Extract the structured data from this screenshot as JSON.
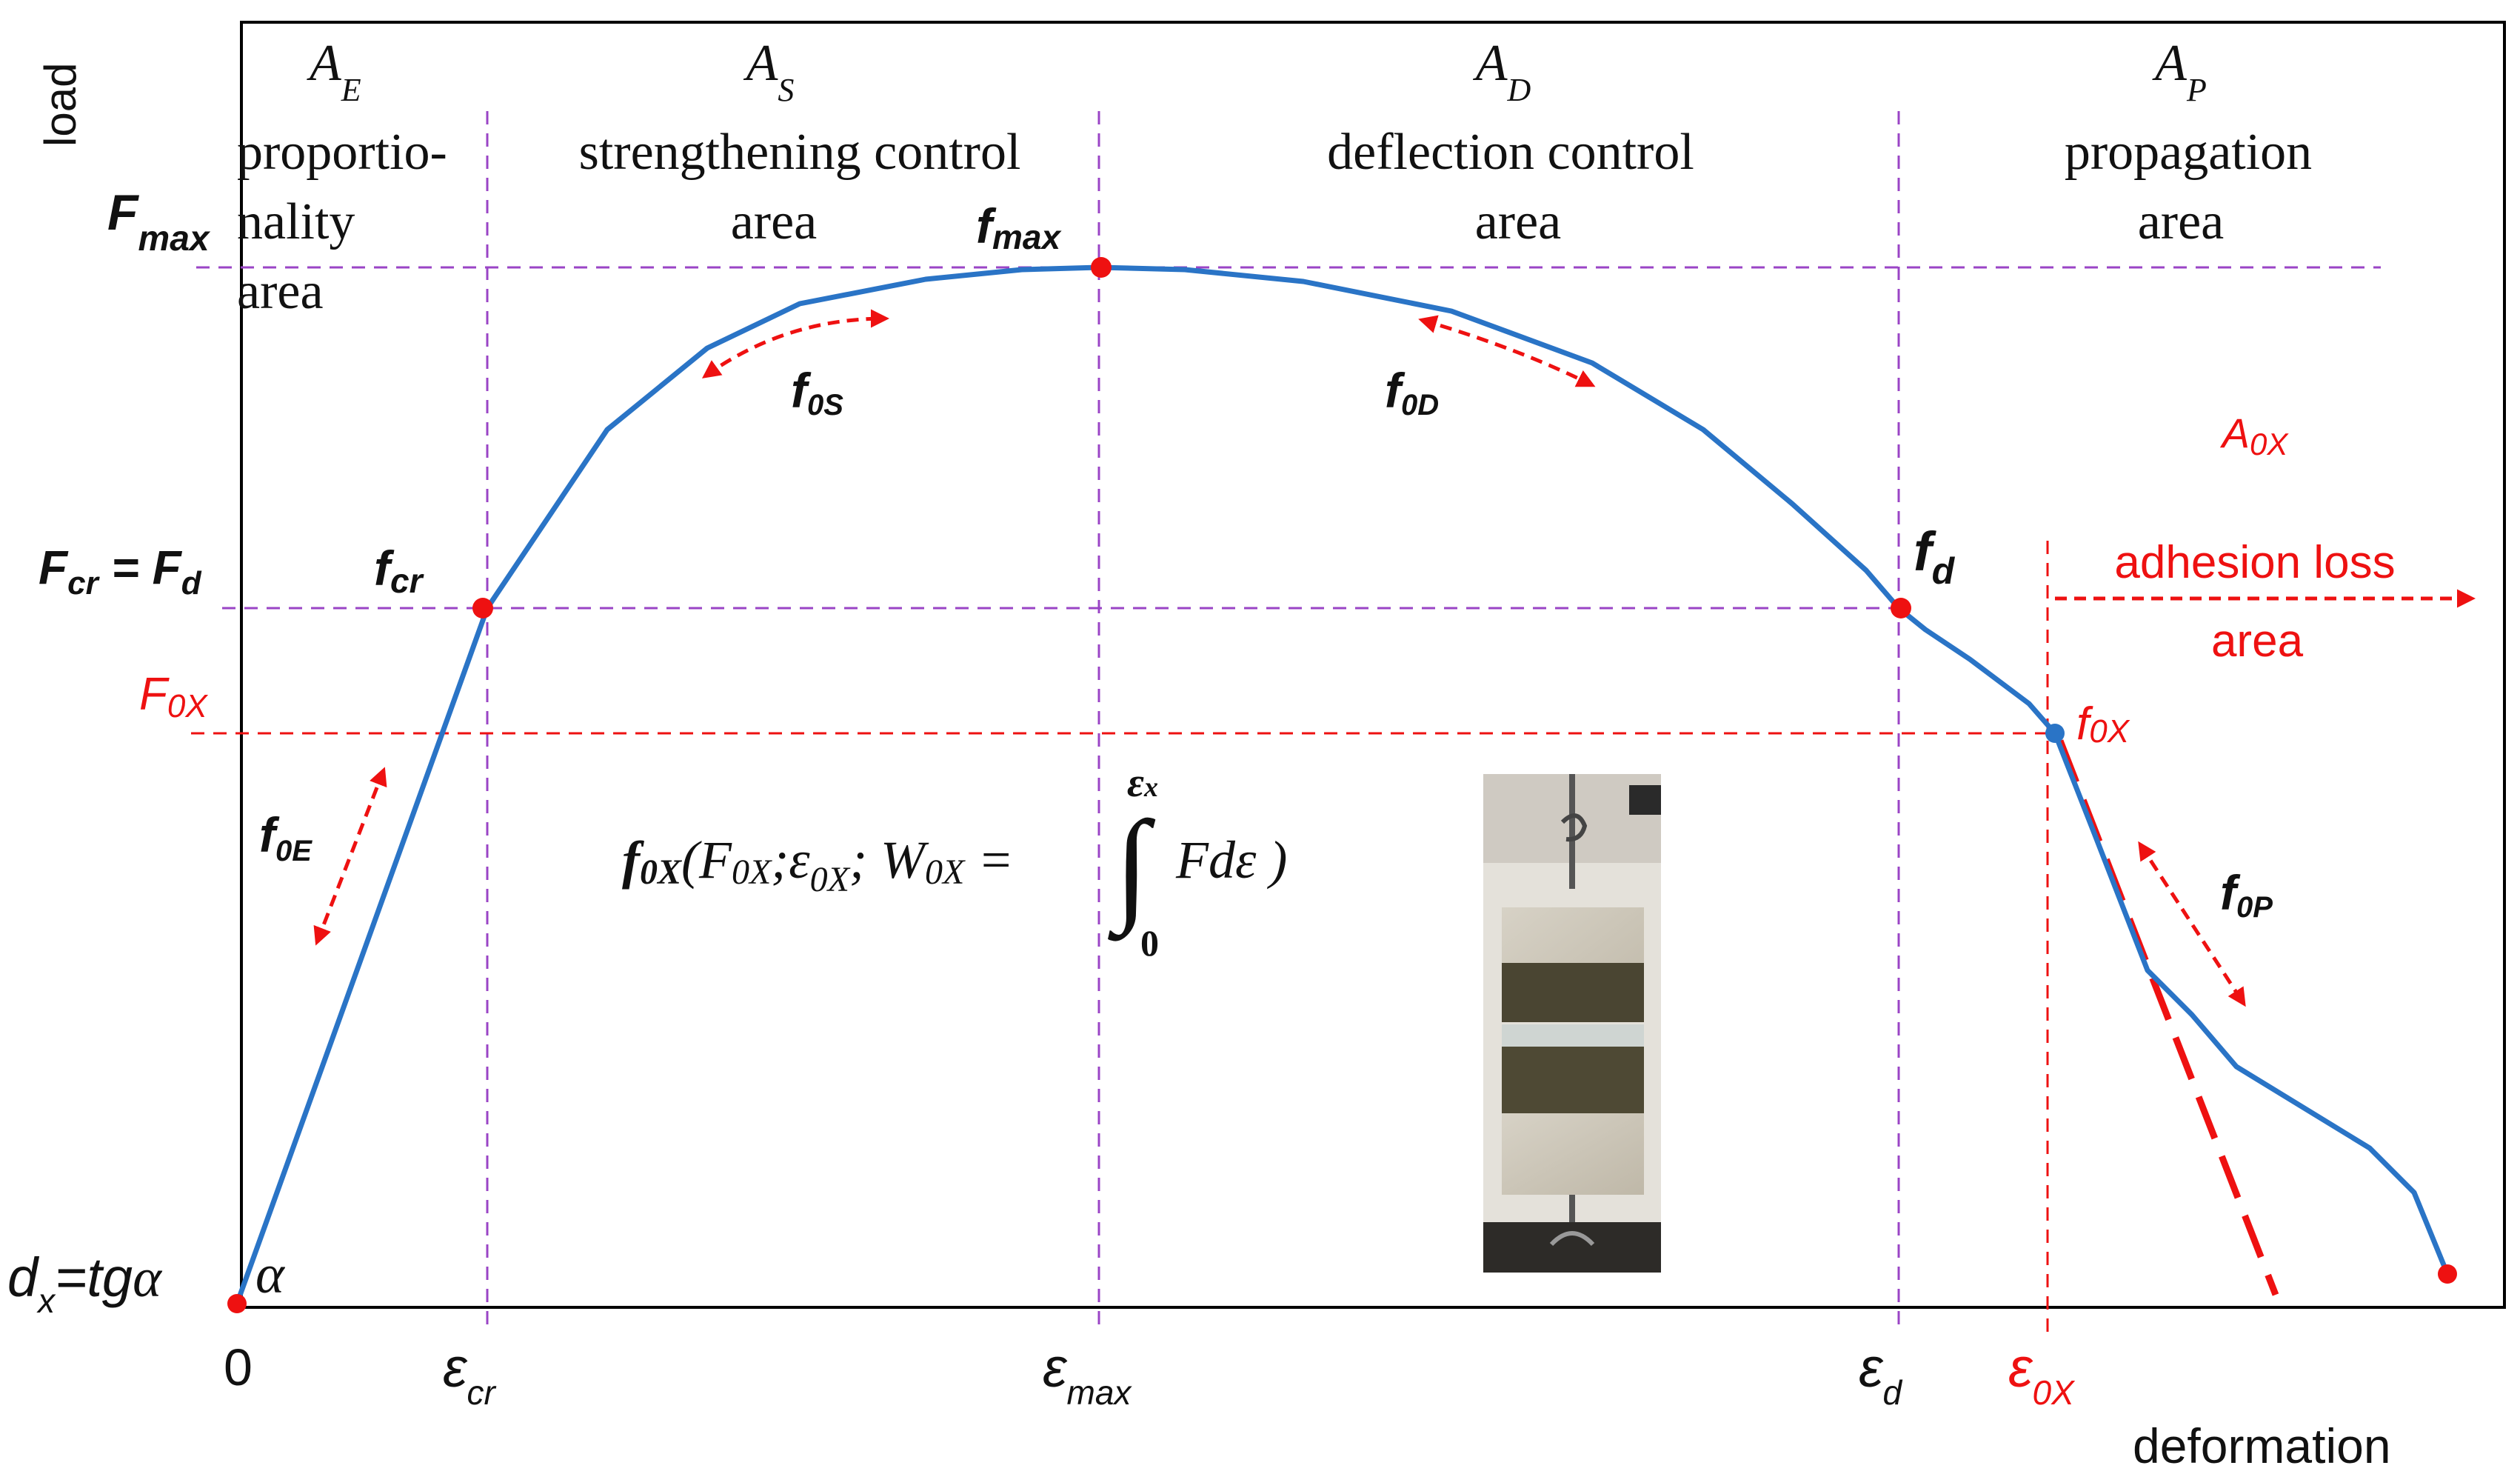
{
  "colors": {
    "curve": "#2a74c6",
    "guide": "#9a44c6",
    "accent": "#ee1111",
    "text": "#111111",
    "frame": "#000000",
    "point_blue": "#2a74c6"
  },
  "axes": {
    "y_label": "load",
    "x_label": "deformation",
    "origin_label": "0"
  },
  "zones": {
    "e": {
      "sym": "A",
      "sub": "E",
      "lines": [
        "proportio-",
        "nality",
        "area"
      ]
    },
    "s": {
      "sym": "A",
      "sub": "S",
      "lines": [
        "strengthening control",
        "area"
      ]
    },
    "d": {
      "sym": "A",
      "sub": "D",
      "lines": [
        "deflection control",
        "area"
      ]
    },
    "p": {
      "sym": "A",
      "sub": "P",
      "lines": [
        "propagation",
        "area"
      ]
    },
    "ox": {
      "sym": "A",
      "sub": "0X",
      "lines": [
        "adhesion loss",
        "area"
      ]
    }
  },
  "y_labels": {
    "fmax": {
      "sym": "F",
      "sub": "max"
    },
    "fcr": {
      "sym1": "F",
      "sub1": "cr",
      "eq": " = ",
      "sym2": "F",
      "sub2": "d"
    },
    "f0x": {
      "sym": "F",
      "sub": "0X"
    },
    "dx": {
      "sym": "d",
      "sub": "x",
      "rest": "=tg",
      "alpha": "α"
    }
  },
  "x_labels": {
    "cr": {
      "sym": "ε",
      "sub": "cr"
    },
    "max": {
      "sym": "ε",
      "sub": "max"
    },
    "d": {
      "sym": "ε",
      "sub": "d"
    },
    "ox": {
      "sym": "ε",
      "sub": "0X"
    }
  },
  "point_labels": {
    "fmax": {
      "sym": "f",
      "sub": "max"
    },
    "fcr": {
      "sym": "f",
      "sub": "cr"
    },
    "fd": {
      "sym": "f",
      "sub": "d"
    },
    "fox": {
      "sym": "f",
      "sub": "0X"
    },
    "alpha": "α"
  },
  "modulus_labels": {
    "e": {
      "sym": "f",
      "sub": "0E"
    },
    "s": {
      "sym": "f",
      "sub": "0S"
    },
    "d": {
      "sym": "f",
      "sub": "0D"
    },
    "p": {
      "sym": "f",
      "sub": "0P"
    }
  },
  "formula": {
    "f": "f",
    "f_sub": "0X",
    "open": "(F",
    "F_sub": "0X",
    "sep1": ";",
    "eps": "ε",
    "eps_sub": "0X",
    "sep2": "; W",
    "W_sub": "0X",
    "eq": " =",
    "integral": "∫",
    "upper_sym": "ε",
    "upper_sub": "x",
    "lower": "0",
    "body": "Fdε )"
  },
  "photo": {
    "description_hidden": true
  }
}
